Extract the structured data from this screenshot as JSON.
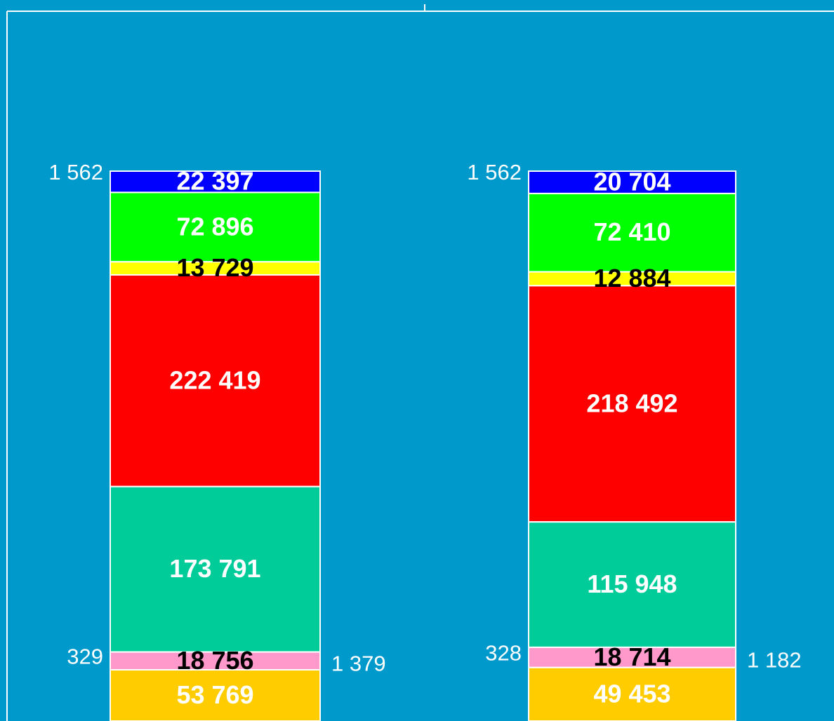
{
  "chart_data": {
    "type": "bar",
    "stacked": true,
    "normalized": true,
    "categories": [
      null,
      null
    ],
    "series": [
      {
        "name": null,
        "color": "#0000ff",
        "label_color": "#ffffff",
        "values": [
          22397,
          20704
        ],
        "value_labels": [
          "22 397",
          "20 704"
        ]
      },
      {
        "name": null,
        "color": "#00ff00",
        "label_color": "#ffffff",
        "values": [
          72896,
          72410
        ],
        "value_labels": [
          "72 896",
          "72 410"
        ]
      },
      {
        "name": null,
        "color": "#ffff00",
        "label_color": "#000000",
        "values": [
          13729,
          12884
        ],
        "value_labels": [
          "13 729",
          "12 884"
        ]
      },
      {
        "name": null,
        "color": "#ff0000",
        "label_color": "#ffffff",
        "values": [
          222419,
          218492
        ],
        "value_labels": [
          "222 419",
          "218 492"
        ]
      },
      {
        "name": null,
        "color": "#00cc99",
        "label_color": "#ffffff",
        "values": [
          173791,
          115948
        ],
        "value_labels": [
          "173 791",
          "115 948"
        ]
      },
      {
        "name": null,
        "color": "#ff99cc",
        "label_color": "#000000",
        "values": [
          18756,
          18714
        ],
        "value_labels": [
          "18 756",
          "18 714"
        ]
      },
      {
        "name": null,
        "color": "#ffcc00",
        "label_color": "#ffffff",
        "values": [
          53769,
          49453
        ],
        "value_labels": [
          "53 769",
          "49 453"
        ]
      }
    ],
    "annotations": [
      {
        "top": "1 562",
        "left": "329",
        "right": "1 379"
      },
      {
        "top": "1 562",
        "left": "328",
        "right": "1 182"
      }
    ]
  }
}
